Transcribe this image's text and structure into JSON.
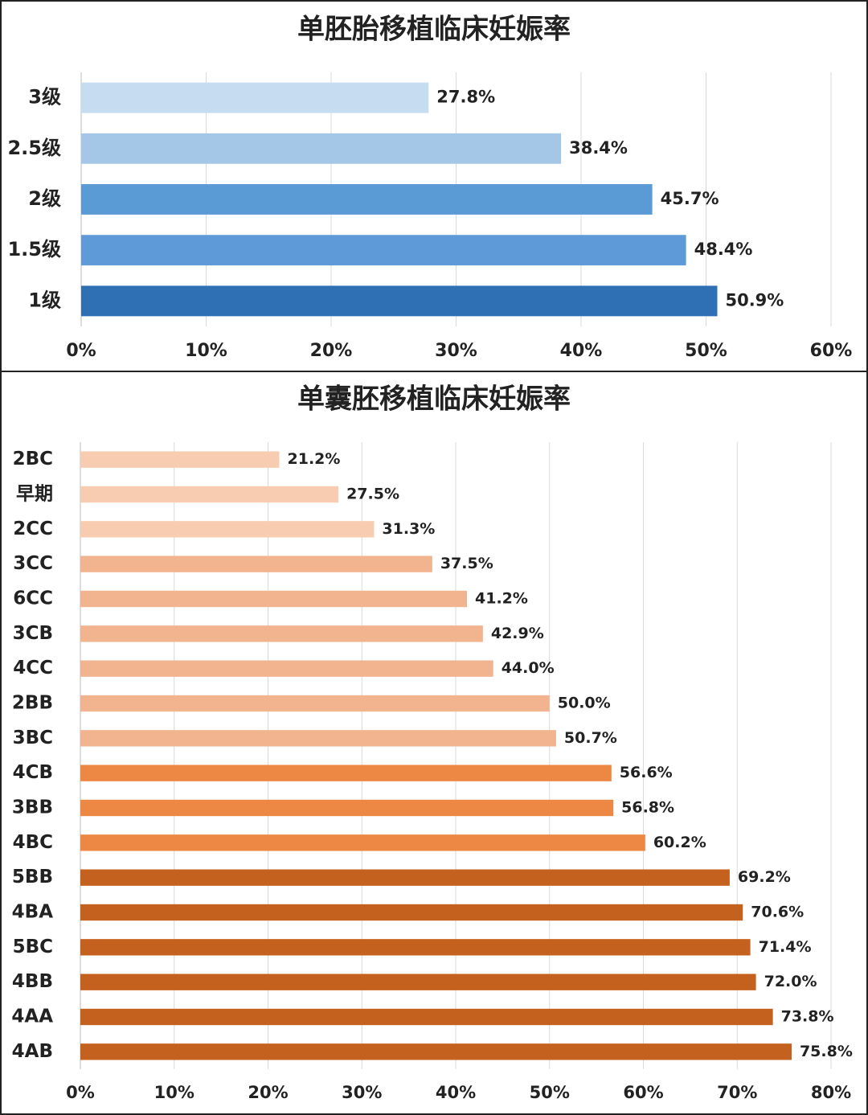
{
  "chart_data": [
    {
      "type": "bar",
      "orientation": "horizontal",
      "title": "单胚胎移植临床妊娠率",
      "categories": [
        "3级",
        "2.5级",
        "2级",
        "1.5级",
        "1级"
      ],
      "values": [
        27.8,
        38.4,
        45.7,
        48.4,
        50.9
      ],
      "value_labels": [
        "27.8%",
        "38.4%",
        "45.7%",
        "48.4%",
        "50.9%"
      ],
      "colors": [
        "#c6ddf1",
        "#a4c7e8",
        "#5b9bd5",
        "#5e9ad7",
        "#2f70b4"
      ],
      "xlim": [
        0,
        60
      ],
      "xticks": [
        {
          "value": 0,
          "label": "0%"
        },
        {
          "value": 10,
          "label": "10%"
        },
        {
          "value": 20,
          "label": "20%"
        },
        {
          "value": 30,
          "label": "30%"
        },
        {
          "value": 40,
          "label": "40%"
        },
        {
          "value": 50,
          "label": "50%"
        },
        {
          "value": 60,
          "label": "60%"
        }
      ],
      "grid": true
    },
    {
      "type": "bar",
      "orientation": "horizontal",
      "title": "单囊胚移植临床妊娠率",
      "categories": [
        "2BC",
        "早期",
        "2CC",
        "3CC",
        "6CC",
        "3CB",
        "4CC",
        "2BB",
        "3BC",
        "4CB",
        "3BB",
        "4BC",
        "5BB",
        "4BA",
        "5BC",
        "4BB",
        "4AA",
        "4AB"
      ],
      "values": [
        21.2,
        27.5,
        31.3,
        37.5,
        41.2,
        42.9,
        44.0,
        50.0,
        50.7,
        56.6,
        56.8,
        60.2,
        69.2,
        70.6,
        71.4,
        72.0,
        73.8,
        75.8
      ],
      "value_labels": [
        "21.2%",
        "27.5%",
        "31.3%",
        "37.5%",
        "41.2%",
        "42.9%",
        "44.0%",
        "50.0%",
        "50.7%",
        "56.6%",
        "56.8%",
        "60.2%",
        "69.2%",
        "70.6%",
        "71.4%",
        "72.0%",
        "73.8%",
        "75.8%"
      ],
      "colors": [
        "#f8ccb1",
        "#f8ccb1",
        "#f8ccb1",
        "#f2b48f",
        "#f2b48f",
        "#f2b48f",
        "#f2b48f",
        "#f2b48f",
        "#f2b48f",
        "#ec8744",
        "#ec8744",
        "#ec8744",
        "#c5611f",
        "#c5611f",
        "#c5611f",
        "#c5611f",
        "#c5611f",
        "#c5611f"
      ],
      "xlim": [
        0,
        80
      ],
      "xticks": [
        {
          "value": 0,
          "label": "0%"
        },
        {
          "value": 10,
          "label": "10%"
        },
        {
          "value": 20,
          "label": "20%"
        },
        {
          "value": 30,
          "label": "30%"
        },
        {
          "value": 40,
          "label": "40%"
        },
        {
          "value": 50,
          "label": "50%"
        },
        {
          "value": 60,
          "label": "60%"
        },
        {
          "value": 70,
          "label": "70%"
        },
        {
          "value": 80,
          "label": "80%"
        }
      ],
      "grid": true
    }
  ]
}
